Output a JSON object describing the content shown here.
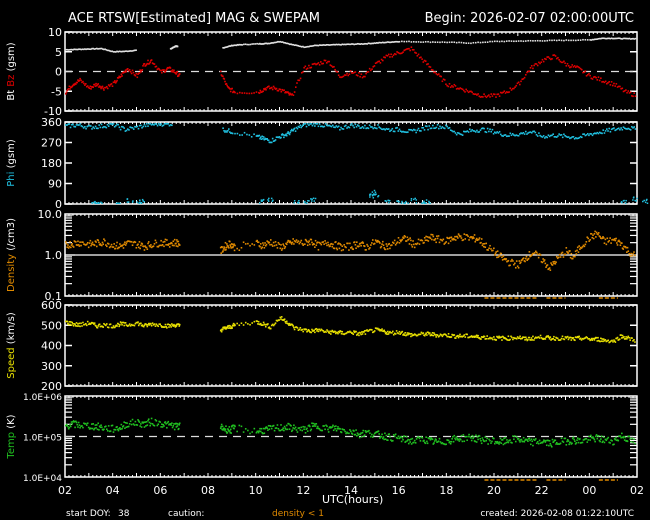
{
  "header": {
    "title": "ACE RTSW[Estimated] MAG & SWEPAM",
    "begin": "Begin: 2026-02-07 02:00:00UTC"
  },
  "footer": {
    "start_doy_label": "start DOY:",
    "start_doy_value": "38",
    "caution_label": "caution:",
    "caution_note": "density < 1",
    "created": "created: 2026-02-08 01:22:10UTC"
  },
  "colors": {
    "background": "#000000",
    "axis": "#ffffff",
    "bt": "#e0e0e0",
    "bz": "#e00000",
    "phi": "#20c0e0",
    "density": "#e08a00",
    "speed": "#e8e000",
    "temp": "#20c020",
    "caution": "#e08a00"
  },
  "chart_data": {
    "type": "scatter",
    "title": "ACE RTSW[Estimated] MAG & SWEPAM",
    "xlabel": "UTC(hours)",
    "x_ticks": [
      "02",
      "04",
      "06",
      "08",
      "10",
      "12",
      "14",
      "16",
      "18",
      "20",
      "22",
      "00",
      "02"
    ],
    "x_range_hours": [
      0,
      24
    ],
    "panels": [
      {
        "id": "bt_bz",
        "ylabel_parts": [
          "Bt",
          "Bz",
          "(gsm)"
        ],
        "ylim": [
          -10,
          10
        ],
        "yticks": [
          "10",
          "5",
          "0",
          "-5",
          "-10"
        ],
        "ref_line": 0,
        "series": [
          {
            "name": "Bt",
            "color": "#e0e0e0",
            "x": [
              0,
              0.5,
              1,
              1.5,
              2,
              2.5,
              3,
              4.4,
              4.6,
              4.7,
              6.6,
              7,
              7.4,
              8.1,
              8.5,
              9,
              9.5,
              10,
              10.5,
              11,
              11.5,
              12,
              12.5,
              13,
              13.5,
              14,
              15,
              16,
              17,
              18,
              19,
              20,
              21,
              22,
              22.5,
              23,
              23.5,
              24.0,
              24.4
            ],
            "y": [
              5.7,
              5.8,
              5.9,
              6.0,
              5.2,
              5.3,
              5.6,
              5.9,
              6.6,
              6.5,
              6.2,
              6.8,
              7.0,
              7.2,
              7.3,
              7.8,
              7.0,
              6.4,
              6.8,
              6.9,
              7.0,
              7.1,
              7.2,
              7.4,
              7.6,
              7.8,
              7.7,
              7.6,
              7.4,
              7.8,
              7.9,
              8.0,
              8.1,
              8.2,
              8.6,
              8.6,
              8.5,
              8.5,
              8.5
            ]
          },
          {
            "name": "Bz",
            "color": "#e00000",
            "x": [
              0,
              0.3,
              0.6,
              1,
              1.3,
              1.6,
              2,
              2.3,
              2.6,
              3,
              3.3,
              3.6,
              4,
              4.3,
              4.6,
              4.8,
              6.5,
              6.8,
              7.1,
              8.1,
              8.4,
              8.8,
              9.2,
              9.5,
              10,
              10.5,
              11,
              11.5,
              12,
              12.5,
              13,
              13.5,
              14,
              14.5,
              15,
              15.5,
              16,
              16.5,
              17,
              17.5,
              18,
              18.5,
              19,
              19.5,
              20,
              20.5,
              21,
              21.5,
              22,
              22.5,
              23,
              23.5,
              24,
              24.4
            ],
            "y": [
              -5,
              -3,
              -2,
              -4,
              -3,
              -4,
              -3,
              -1,
              1,
              -1,
              2,
              3,
              0,
              1,
              0,
              -1,
              0,
              -4,
              -5,
              -5,
              -4,
              -4,
              -5,
              -6,
              1,
              2,
              3,
              -1,
              0,
              -1,
              2,
              4,
              5,
              6,
              3,
              0,
              -3,
              -4,
              -5,
              -6,
              -6,
              -5,
              -3,
              1,
              3,
              4,
              2,
              1,
              -1,
              -2,
              -3,
              -5,
              -6,
              -5
            ]
          }
        ]
      },
      {
        "id": "phi",
        "ylabel_parts": [
          "Phi",
          "(gsm)"
        ],
        "ylim": [
          0,
          360
        ],
        "yticks": [
          "360",
          "270",
          "180",
          "90",
          "0"
        ],
        "series": [
          {
            "name": "Phi",
            "color": "#20c0e0",
            "x": [
              0,
              0.5,
              1,
              1.5,
              2,
              2.5,
              3,
              3.5,
              4,
              4.5,
              6.6,
              7,
              8,
              8.3,
              8.6,
              9,
              9.3,
              9.6,
              10,
              10.5,
              11,
              11.5,
              12,
              12.5,
              13,
              13.5,
              14,
              14.5,
              15,
              15.5,
              16,
              16.5,
              17,
              17.5,
              18,
              18.5,
              19,
              19.5,
              20,
              20.5,
              21,
              21.5,
              22,
              22.5,
              23,
              23.5,
              24,
              24.3
            ],
            "y": [
              345,
              350,
              340,
              345,
              352,
              330,
              340,
              352,
              355,
              355,
              330,
              320,
              300,
              290,
              280,
              300,
              310,
              330,
              350,
              355,
              345,
              335,
              350,
              340,
              345,
              330,
              330,
              320,
              335,
              345,
              340,
              310,
              325,
              330,
              320,
              305,
              310,
              320,
              300,
              305,
              300,
              295,
              310,
              320,
              330,
              340,
              330,
              355
            ]
          },
          {
            "name": "Phi-low",
            "color": "#20c0e0",
            "x": [
              1.2,
              1.4,
              2.2,
              2.7,
              3,
              3.2,
              8.2,
              8.6,
              9.7,
              10.1,
              10.4,
              12.8,
              12.9,
              13,
              13.5,
              14,
              14.3,
              14.6,
              15.0,
              15.2,
              23.9,
              24.3,
              23.4
            ],
            "y": [
              5,
              10,
              3,
              20,
              10,
              15,
              15,
              22,
              12,
              8,
              25,
              40,
              55,
              45,
              10,
              8,
              5,
              18,
              5,
              12,
              25,
              15,
              10
            ]
          }
        ]
      },
      {
        "id": "density",
        "ylabel_parts": [
          "Density",
          "(/cm3)"
        ],
        "yscale": "log",
        "ylim": [
          0.1,
          10
        ],
        "yticks": [
          "10.0",
          "1.0",
          "0.1"
        ],
        "ref_line": 1,
        "series": [
          {
            "name": "Density",
            "color": "#e08a00",
            "x": [
              0,
              0.3,
              0.6,
              1,
              1.3,
              1.6,
              2,
              2.3,
              2.6,
              3,
              3.3,
              3.6,
              4,
              4.3,
              4.6,
              4.8,
              6.5,
              6.7,
              6.9,
              7.1,
              8,
              8.3,
              8.6,
              9,
              9.3,
              9.6,
              10,
              10.3,
              10.6,
              11,
              11.3,
              11.6,
              12,
              12.3,
              12.6,
              13,
              13.3,
              13.6,
              14,
              14.3,
              14.6,
              15,
              15.3,
              15.6,
              16,
              16.3,
              16.6,
              17,
              17.3,
              17.6,
              18,
              18.3,
              18.6,
              19,
              19.3,
              19.6,
              20,
              20.3,
              20.6,
              21,
              21.3,
              21.6,
              22,
              22.3,
              22.6,
              23,
              23.3,
              23.6,
              24,
              24.3
            ],
            "y": [
              1.8,
              2.0,
              2.1,
              1.9,
              2.0,
              2.2,
              1.8,
              1.7,
              2.0,
              1.9,
              1.7,
              1.9,
              2.1,
              2.0,
              2.1,
              2.0,
              1.3,
              1.7,
              2.0,
              1.6,
              2.0,
              1.8,
              2.2,
              1.6,
              1.9,
              2.2,
              2.0,
              2.3,
              1.7,
              2.1,
              1.8,
              1.6,
              1.7,
              2.0,
              1.6,
              2.2,
              1.8,
              1.7,
              2.4,
              2.6,
              1.9,
              2.2,
              2.8,
              2.5,
              2.3,
              2.8,
              2.9,
              2.7,
              2.6,
              1.8,
              1.2,
              0.9,
              0.7,
              0.6,
              0.9,
              1.2,
              0.8,
              0.5,
              0.8,
              1.3,
              0.9,
              1.7,
              2.8,
              3.5,
              2.2,
              2.4,
              2.0,
              1.3,
              0.9,
              1.6
            ]
          }
        ]
      },
      {
        "id": "speed",
        "ylabel_parts": [
          "Speed",
          "(km/s)"
        ],
        "ylim": [
          200,
          600
        ],
        "yticks": [
          "600",
          "500",
          "400",
          "300",
          "200"
        ],
        "series": [
          {
            "name": "Speed",
            "color": "#e8e000",
            "x": [
              0,
              0.3,
              0.6,
              1,
              1.3,
              1.6,
              2,
              2.3,
              2.6,
              3,
              3.3,
              3.6,
              4,
              4.3,
              4.6,
              4.8,
              6.5,
              6.7,
              6.9,
              7.1,
              8,
              8.3,
              8.6,
              9,
              9.3,
              9.6,
              10,
              10.3,
              10.6,
              11,
              11.3,
              11.6,
              12,
              12.3,
              12.6,
              13,
              13.3,
              13.6,
              14,
              14.3,
              14.6,
              15,
              15.3,
              15.6,
              16,
              16.3,
              16.6,
              17,
              17.3,
              17.6,
              18,
              18.3,
              18.6,
              19,
              19.3,
              19.6,
              20,
              20.3,
              20.6,
              21,
              21.3,
              21.6,
              22,
              22.3,
              22.6,
              23,
              23.3,
              23.6,
              24,
              24.3
            ],
            "y": [
              520,
              510,
              505,
              515,
              500,
              505,
              500,
              510,
              505,
              515,
              500,
              510,
              505,
              500,
              505,
              500,
              480,
              490,
              495,
              505,
              520,
              510,
              495,
              540,
              520,
              490,
              480,
              475,
              480,
              470,
              470,
              465,
              470,
              460,
              470,
              480,
              475,
              465,
              470,
              460,
              455,
              460,
              460,
              455,
              455,
              450,
              450,
              450,
              445,
              445,
              440,
              440,
              440,
              445,
              435,
              440,
              445,
              440,
              440,
              440,
              435,
              440,
              435,
              435,
              430,
              425,
              450,
              440,
              425,
              430
            ]
          }
        ]
      },
      {
        "id": "temp",
        "ylabel_parts": [
          "Temp",
          "(K)"
        ],
        "yscale": "log",
        "ylim": [
          10000,
          1000000
        ],
        "yticks": [
          "1.0E+06",
          "1.0E+05",
          "1.0E+04"
        ],
        "ref_line": 100000,
        "series": [
          {
            "name": "Temp",
            "color": "#20c020",
            "x": [
              0,
              0.3,
              0.6,
              1,
              1.3,
              1.6,
              2,
              2.3,
              2.6,
              3,
              3.3,
              3.6,
              4,
              4.3,
              4.6,
              4.8,
              6.5,
              6.7,
              6.9,
              7.1,
              8,
              8.3,
              8.6,
              9,
              9.3,
              9.6,
              10,
              10.3,
              10.6,
              11,
              11.3,
              11.6,
              12,
              12.3,
              12.6,
              13,
              13.3,
              13.6,
              14,
              14.3,
              14.6,
              15,
              15.3,
              15.6,
              16,
              16.3,
              16.6,
              17,
              17.3,
              17.6,
              18,
              18.3,
              18.6,
              19,
              19.3,
              19.6,
              20,
              20.3,
              20.6,
              21,
              21.3,
              21.6,
              22,
              22.3,
              22.6,
              23,
              23.3,
              23.6,
              24,
              24.3
            ],
            "y": [
              190000,
              210000,
              200000,
              190000,
              185000,
              170000,
              160000,
              175000,
              220000,
              230000,
              210000,
              240000,
              220000,
              200000,
              190000,
              180000,
              180000,
              160000,
              150000,
              170000,
              140000,
              150000,
              160000,
              170000,
              180000,
              165000,
              150000,
              180000,
              190000,
              160000,
              170000,
              150000,
              140000,
              120000,
              130000,
              120000,
              110000,
              100000,
              95000,
              85000,
              80000,
              90000,
              80000,
              75000,
              80000,
              90000,
              95000,
              100000,
              90000,
              85000,
              80000,
              75000,
              85000,
              90000,
              80000,
              75000,
              80000,
              70000,
              75000,
              80000,
              85000,
              80000,
              90000,
              95000,
              85000,
              80000,
              110000,
              90000,
              70000,
              65000
            ]
          }
        ]
      }
    ]
  }
}
